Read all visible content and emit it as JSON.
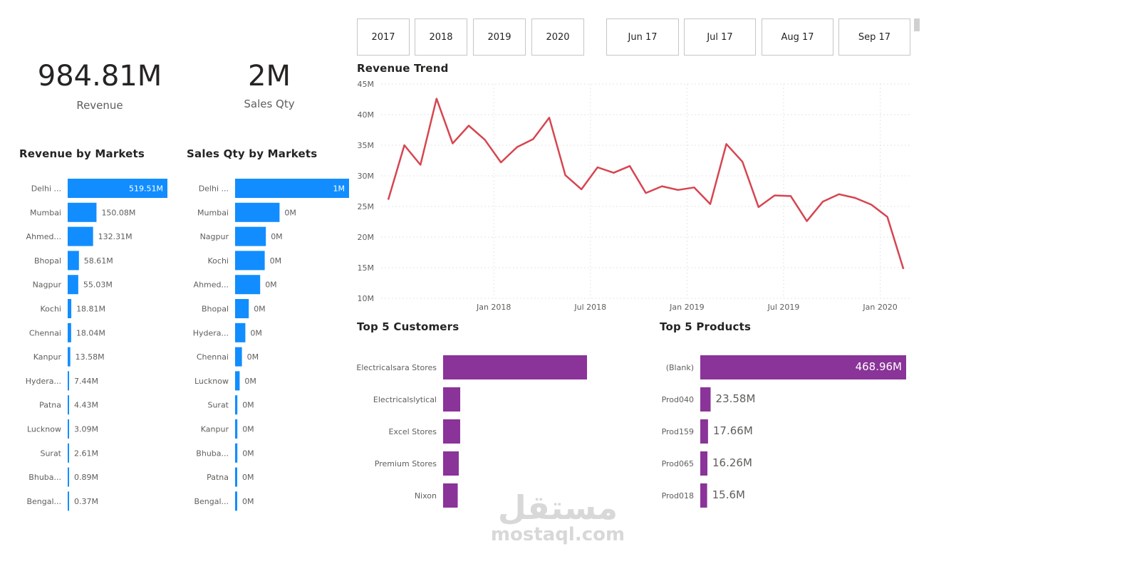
{
  "kpis": {
    "revenue": {
      "value": "984.81M",
      "label": "Revenue"
    },
    "sales_qty": {
      "value": "2M",
      "label": "Sales Qty"
    }
  },
  "slicers": {
    "years": [
      "2017",
      "2018",
      "2019",
      "2020"
    ],
    "months": [
      "Jun 17",
      "Jul 17",
      "Aug 17",
      "Sep 17"
    ]
  },
  "colors": {
    "blue": "#118DFF",
    "red": "#D64550",
    "purple": "#8A3399"
  },
  "watermark": {
    "arabic": "مستقل",
    "latin": "mostaql.com"
  },
  "chart_data": [
    {
      "id": "revenue-by-markets",
      "type": "bar",
      "orientation": "horizontal",
      "title": "Revenue by Markets",
      "categories": [
        "Delhi ...",
        "Mumbai",
        "Ahmed...",
        "Bhopal",
        "Nagpur",
        "Kochi",
        "Chennai",
        "Kanpur",
        "Hydera...",
        "Patna",
        "Lucknow",
        "Surat",
        "Bhuba...",
        "Bengal..."
      ],
      "values": [
        519.51,
        150.08,
        132.31,
        58.61,
        55.03,
        18.81,
        18.04,
        13.58,
        7.44,
        4.43,
        3.09,
        2.61,
        0.89,
        0.37
      ],
      "labels": [
        "519.51M",
        "150.08M",
        "132.31M",
        "58.61M",
        "55.03M",
        "18.81M",
        "18.04M",
        "13.58M",
        "7.44M",
        "4.43M",
        "3.09M",
        "2.61M",
        "0.89M",
        "0.37M"
      ],
      "color": "#118DFF"
    },
    {
      "id": "sales-qty-by-markets",
      "type": "bar",
      "orientation": "horizontal",
      "title": "Sales Qty by Markets",
      "categories": [
        "Delhi ...",
        "Mumbai",
        "Nagpur",
        "Kochi",
        "Ahmed...",
        "Bhopal",
        "Hydera...",
        "Chennai",
        "Lucknow",
        "Surat",
        "Kanpur",
        "Bhuba...",
        "Patna",
        "Bengal..."
      ],
      "values": [
        1,
        0.39,
        0.27,
        0.26,
        0.22,
        0.12,
        0.09,
        0.06,
        0.04,
        0.02,
        0.02,
        0.02,
        0.01,
        0.01
      ],
      "labels": [
        "1M",
        "0M",
        "0M",
        "0M",
        "0M",
        "0M",
        "0M",
        "0M",
        "0M",
        "0M",
        "0M",
        "0M",
        "0M",
        "0M"
      ],
      "color": "#118DFF"
    },
    {
      "id": "revenue-trend",
      "type": "line",
      "title": "Revenue Trend",
      "series": [
        {
          "values": [
            26.1,
            35.0,
            31.8,
            42.6,
            35.3,
            38.2,
            35.9,
            32.2,
            34.7,
            36.0,
            39.5,
            30.1,
            27.8,
            31.4,
            30.5,
            31.6,
            27.2,
            28.3,
            27.7,
            28.1,
            25.4,
            35.2,
            32.3,
            24.9,
            26.8,
            26.7,
            22.6,
            25.8,
            27.0,
            26.4,
            25.3,
            23.3,
            14.8
          ]
        }
      ],
      "x_tick_labels": [
        "Jan 2018",
        "Jul 2018",
        "Jan 2019",
        "Jul 2019",
        "Jan 2020"
      ],
      "x_tick_index": [
        7,
        13,
        19,
        25,
        31
      ],
      "y_ticks": [
        10,
        15,
        20,
        25,
        30,
        35,
        40,
        45
      ],
      "y_tick_labels": [
        "10M",
        "15M",
        "20M",
        "25M",
        "30M",
        "35M",
        "40M",
        "45M"
      ],
      "ylim": [
        10,
        45
      ],
      "grid": true,
      "color": "#D64550"
    },
    {
      "id": "top-5-customers",
      "type": "bar",
      "orientation": "horizontal",
      "title": "Top 5 Customers",
      "categories": [
        "Electricalsara Stores",
        "Electricalslytical",
        "Excel Stores",
        "Premium Stores",
        "Nixon"
      ],
      "values": [
        413.33,
        49.2,
        49.0,
        45.0,
        42.0
      ],
      "color": "#8A3399"
    },
    {
      "id": "top-5-products",
      "type": "bar",
      "orientation": "horizontal",
      "title": "Top 5 Products",
      "categories": [
        "(Blank)",
        "Prod040",
        "Prod159",
        "Prod065",
        "Prod018"
      ],
      "values": [
        468.96,
        23.58,
        17.66,
        16.26,
        15.6
      ],
      "labels": [
        "468.96M",
        "23.58M",
        "17.66M",
        "16.26M",
        "15.6M"
      ],
      "color": "#8A3399"
    }
  ]
}
